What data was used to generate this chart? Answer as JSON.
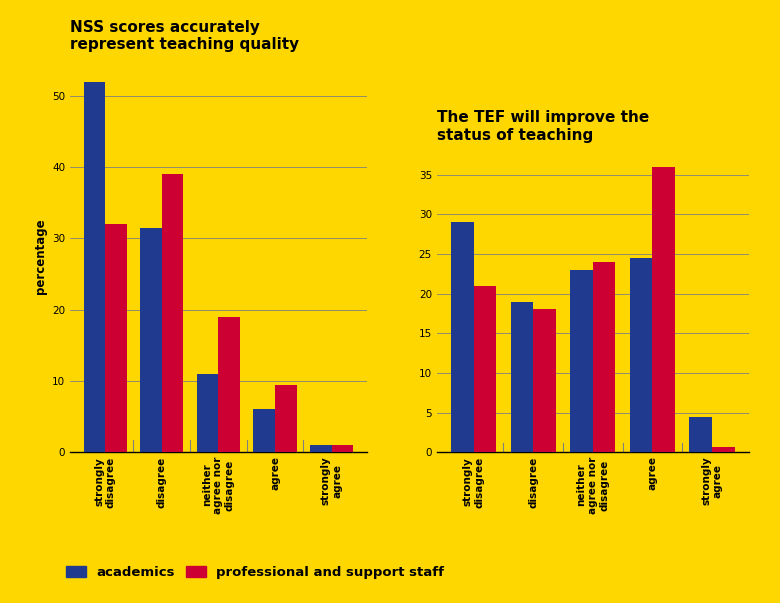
{
  "chart1": {
    "title": "NSS scores accurately\nrepresent teaching quality",
    "categories": [
      "strongly\ndisagree",
      "disagree",
      "neither\nagree nor\ndisagree",
      "agree",
      "strongly\nagree"
    ],
    "academics": [
      52,
      31.5,
      11,
      6,
      1
    ],
    "support_staff": [
      32,
      39,
      19,
      9.5,
      1
    ],
    "ylim": [
      0,
      55
    ],
    "yticks": [
      0,
      10,
      20,
      30,
      40,
      50
    ]
  },
  "chart2": {
    "title": "The TEF will improve the\nstatus of teaching",
    "categories": [
      "strongly\ndisagree",
      "disagree",
      "neither\nagree nor\ndisagree",
      "agree",
      "strongly\nagree"
    ],
    "academics": [
      29,
      19,
      23,
      24.5,
      4.5
    ],
    "support_staff": [
      21,
      18,
      24,
      36,
      0.7
    ],
    "ylim": [
      0,
      38
    ],
    "yticks": [
      0,
      5,
      10,
      15,
      20,
      25,
      30,
      35
    ]
  },
  "bg_color": "#FFD700",
  "bar_color_academics": "#1F3A8F",
  "bar_color_support": "#CC0033",
  "ylabel": "percentage",
  "legend_academics": "academics",
  "legend_support": "professional and support staff",
  "title_fontsize": 11,
  "label_fontsize": 8.5,
  "tick_fontsize": 7.5
}
